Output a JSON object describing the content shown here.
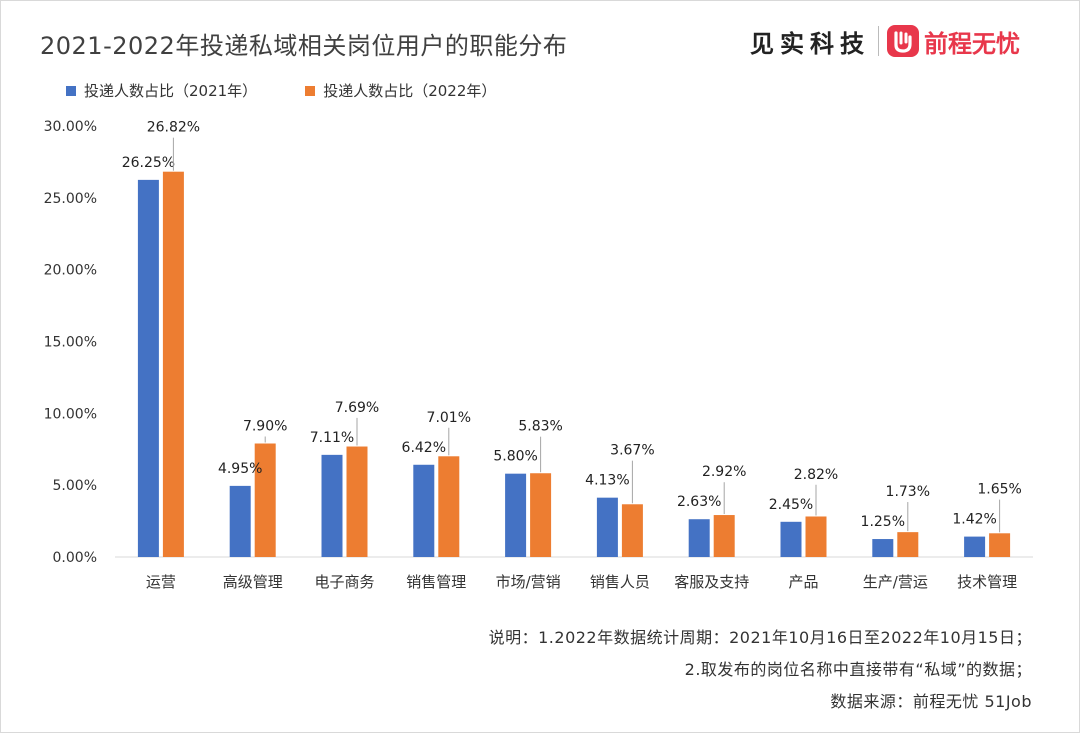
{
  "header": {
    "title": "2021-2022年投递私域相关岗位用户的职能分布",
    "logo_jianshi": "见实科技",
    "logo_qiancheng": "前程无忧"
  },
  "colors": {
    "series_2021": "#4472c4",
    "series_2022": "#ed7d31",
    "grid": "#d9d9d9",
    "logo_red": "#e8374b"
  },
  "chart_data": {
    "type": "bar",
    "title": "2021-2022年投递私域相关岗位用户的职能分布",
    "categories": [
      "运营",
      "高级管理",
      "电子商务",
      "销售管理",
      "市场/营销",
      "销售人员",
      "客服及支持",
      "产品",
      "生产/营运",
      "技术管理"
    ],
    "series": [
      {
        "name": "投递人数占比（2021年）",
        "values": [
          26.25,
          4.95,
          7.11,
          6.42,
          5.8,
          4.13,
          2.63,
          2.45,
          1.25,
          1.42
        ],
        "labels": [
          "26.25%",
          "4.95%",
          "7.11%",
          "6.42%",
          "5.80%",
          "4.13%",
          "2.63%",
          "2.45%",
          "1.25%",
          "1.42%"
        ]
      },
      {
        "name": "投递人数占比（2022年）",
        "values": [
          26.82,
          7.9,
          7.69,
          7.01,
          5.83,
          3.67,
          2.92,
          2.82,
          1.73,
          1.65
        ],
        "labels": [
          "26.82%",
          "7.90%",
          "7.69%",
          "7.01%",
          "5.83%",
          "3.67%",
          "2.92%",
          "2.82%",
          "1.73%",
          "1.65%"
        ]
      }
    ],
    "ylim": [
      0,
      30
    ],
    "yticks": [
      0,
      5,
      10,
      15,
      20,
      25,
      30
    ],
    "ytick_labels": [
      "0.00%",
      "5.00%",
      "10.00%",
      "15.00%",
      "20.00%",
      "25.00%",
      "30.00%"
    ],
    "xlabel": "",
    "ylabel": "",
    "grid": false,
    "legend_position": "top-left"
  },
  "notes": {
    "line1": "说明：1.2022年数据统计周期：2021年10月16日至2022年10月15日；",
    "line2": "2.取发布的岗位名称中直接带有“私域”的数据；",
    "source": "数据来源：前程无忧 51Job"
  }
}
